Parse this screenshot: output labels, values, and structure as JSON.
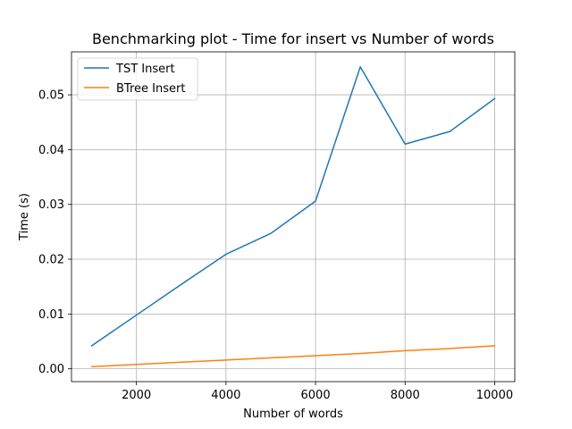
{
  "chart_data": {
    "type": "line",
    "title": "Benchmarking plot - Time for insert vs Number of words",
    "xlabel": "Number of words",
    "ylabel": "Time (s)",
    "x": [
      1000,
      2000,
      3000,
      4000,
      5000,
      6000,
      7000,
      8000,
      9000,
      10000
    ],
    "series": [
      {
        "name": "TST Insert",
        "color": "#1f77b4",
        "values": [
          0.0042,
          0.0098,
          0.0154,
          0.0209,
          0.0247,
          0.0306,
          0.0551,
          0.041,
          0.0433,
          0.0493
        ]
      },
      {
        "name": "BTree Insert",
        "color": "#ff7f0e",
        "values": [
          0.0004,
          0.0008,
          0.0012,
          0.0016,
          0.002,
          0.0024,
          0.0028,
          0.0033,
          0.0037,
          0.0042
        ]
      }
    ],
    "xlim": [
      550,
      10450
    ],
    "ylim": [
      -0.00234,
      0.05784
    ],
    "xticks": [
      2000,
      4000,
      6000,
      8000,
      10000
    ],
    "xtick_labels": [
      "2000",
      "4000",
      "6000",
      "8000",
      "10000"
    ],
    "yticks": [
      0.0,
      0.01,
      0.02,
      0.03,
      0.04,
      0.05
    ],
    "ytick_labels": [
      "0.00",
      "0.01",
      "0.02",
      "0.03",
      "0.04",
      "0.05"
    ],
    "grid": true,
    "legend_position": "upper-left"
  }
}
